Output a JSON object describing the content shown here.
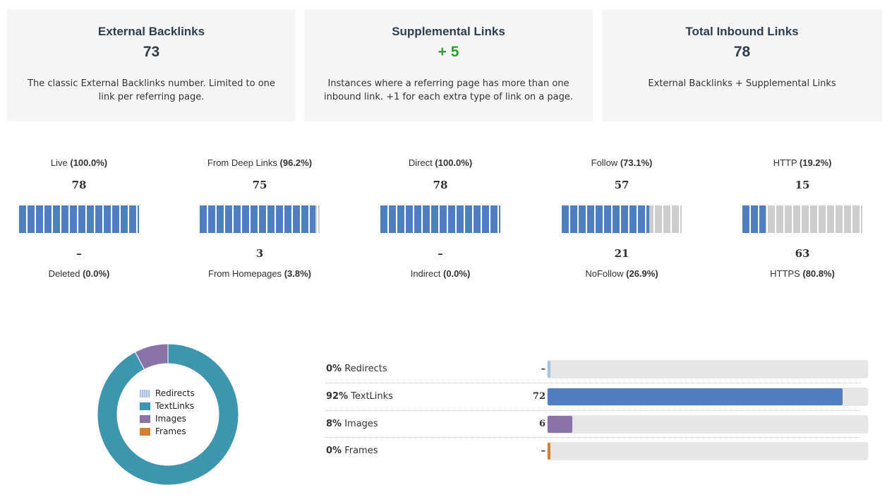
{
  "cards": [
    {
      "title": "External Backlinks",
      "value": "73",
      "value_color": "#2d3e4e",
      "description": "The classic External Backlinks number. Limited to one link per referring page."
    },
    {
      "title": "Supplemental Links",
      "value": "+ 5",
      "value_color": "#2e9e2e",
      "description": "Instances where a referring page has more than one inbound link. +1 for each extra type of link on a page."
    },
    {
      "title": "Total Inbound Links",
      "value": "78",
      "value_color": "#2d3e4e",
      "description": "External Backlinks + Supplemental Links"
    }
  ],
  "gauges": [
    {
      "top_label": "Live",
      "top_pct": "(100.0%)",
      "top_value": "78",
      "fraction": 1.0,
      "bottom_value": "–",
      "bottom_label": "Deleted",
      "bottom_pct": "(0.0%)"
    },
    {
      "top_label": "From Deep Links",
      "top_pct": "(96.2%)",
      "top_value": "75",
      "fraction": 0.962,
      "bottom_value": "3",
      "bottom_label": "From Homepages",
      "bottom_pct": "(3.8%)"
    },
    {
      "top_label": "Direct",
      "top_pct": "(100.0%)",
      "top_value": "78",
      "fraction": 1.0,
      "bottom_value": "–",
      "bottom_label": "Indirect",
      "bottom_pct": "(0.0%)"
    },
    {
      "top_label": "Follow",
      "top_pct": "(73.1%)",
      "top_value": "57",
      "fraction": 0.731,
      "bottom_value": "21",
      "bottom_label": "NoFollow",
      "bottom_pct": "(26.9%)"
    },
    {
      "top_label": "HTTP",
      "top_pct": "(19.2%)",
      "top_value": "15",
      "fraction": 0.192,
      "bottom_value": "63",
      "bottom_label": "HTTPS",
      "bottom_pct": "(80.8%)"
    }
  ],
  "colors": {
    "redirects": "#a9c3e0",
    "textlinks": "#3e95ae",
    "images": "#8a73a8",
    "frames": "#d08232",
    "textlinks_bar": "#4f7fc0"
  },
  "link_types": [
    {
      "name": "Redirects",
      "pct": "0%",
      "count": "–",
      "value": 0,
      "color_key": "redirects"
    },
    {
      "name": "TextLinks",
      "pct": "92%",
      "count": "72",
      "value": 72,
      "color_key": "textlinks_bar"
    },
    {
      "name": "Images",
      "pct": "8%",
      "count": "6",
      "value": 6,
      "color_key": "images"
    },
    {
      "name": "Frames",
      "pct": "0%",
      "count": "–",
      "value": 0,
      "color_key": "frames"
    }
  ],
  "chart_data": {
    "type": "pie",
    "title": "",
    "categories": [
      "Redirects",
      "TextLinks",
      "Images",
      "Frames"
    ],
    "values": [
      0,
      72,
      6,
      0
    ],
    "legend": [
      "Redirects",
      "TextLinks",
      "Images",
      "Frames"
    ],
    "legend_placement": "center"
  }
}
